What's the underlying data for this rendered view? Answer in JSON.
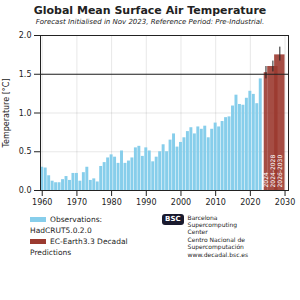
{
  "chart_data": {
    "type": "bar",
    "title": "Global Mean Surface Air Temperature",
    "subtitle": "Forecast Initialised in Nov 2023, Reference Period: Pre-Industrial.",
    "ylabel": "Temperature [°C]",
    "xlim": [
      1959.5,
      2031
    ],
    "ylim": [
      0,
      2
    ],
    "xticks": [
      1960,
      1970,
      1980,
      1990,
      2000,
      2010,
      2020,
      2030
    ],
    "yticks": [
      {
        "value": 0,
        "label": "0.0"
      },
      0.5,
      {
        "value": 1,
        "label": "1.0"
      },
      1.5,
      {
        "value": 2,
        "label": "2.0"
      }
    ],
    "grid": true,
    "legend": "bottom",
    "hline": 1.5,
    "series": [
      {
        "name": "Observations: HadCRUT5.0.2.0",
        "color": "#87CEEB",
        "x": [
          1960,
          1961,
          1962,
          1963,
          1964,
          1965,
          1966,
          1967,
          1968,
          1969,
          1970,
          1971,
          1972,
          1973,
          1974,
          1975,
          1976,
          1977,
          1978,
          1979,
          1980,
          1981,
          1982,
          1983,
          1984,
          1985,
          1986,
          1987,
          1988,
          1989,
          1990,
          1991,
          1992,
          1993,
          1994,
          1995,
          1996,
          1997,
          1998,
          1999,
          2000,
          2001,
          2002,
          2003,
          2004,
          2005,
          2006,
          2007,
          2008,
          2009,
          2010,
          2011,
          2012,
          2013,
          2014,
          2015,
          2016,
          2017,
          2018,
          2019,
          2020,
          2021,
          2022,
          2023
        ],
        "values": [
          0.3,
          0.29,
          0.19,
          0.12,
          0.1,
          0.1,
          0.14,
          0.18,
          0.13,
          0.22,
          0.22,
          0.12,
          0.23,
          0.3,
          0.13,
          0.15,
          0.11,
          0.31,
          0.36,
          0.42,
          0.46,
          0.43,
          0.35,
          0.51,
          0.35,
          0.38,
          0.42,
          0.55,
          0.57,
          0.44,
          0.55,
          0.51,
          0.37,
          0.43,
          0.5,
          0.59,
          0.5,
          0.65,
          0.73,
          0.56,
          0.62,
          0.68,
          0.76,
          0.81,
          0.73,
          0.82,
          0.79,
          0.83,
          0.68,
          0.79,
          0.87,
          0.82,
          0.89,
          0.94,
          0.95,
          1.09,
          1.23,
          1.11,
          1.1,
          1.19,
          1.28,
          1.24,
          1.12,
          1.44
        ]
      },
      {
        "name": "EC-Earth3.3 Decadal Predictions",
        "color": "#9B3A30",
        "x": [
          2024.5,
          2026.5,
          2028.5
        ],
        "labels": [
          "2024",
          "2024-2028",
          "2026-2030"
        ],
        "values": [
          1.52,
          1.6,
          1.75
        ],
        "error_low": [
          0.08,
          0.07,
          0.08
        ],
        "error_high": [
          0.08,
          0.07,
          0.1
        ]
      }
    ],
    "annotations": [
      "BSC",
      "Barcelona\nSupercomputing\nCenter",
      "Centro Nacional de Supercomputación",
      "www.decadal.bsc.es"
    ]
  }
}
